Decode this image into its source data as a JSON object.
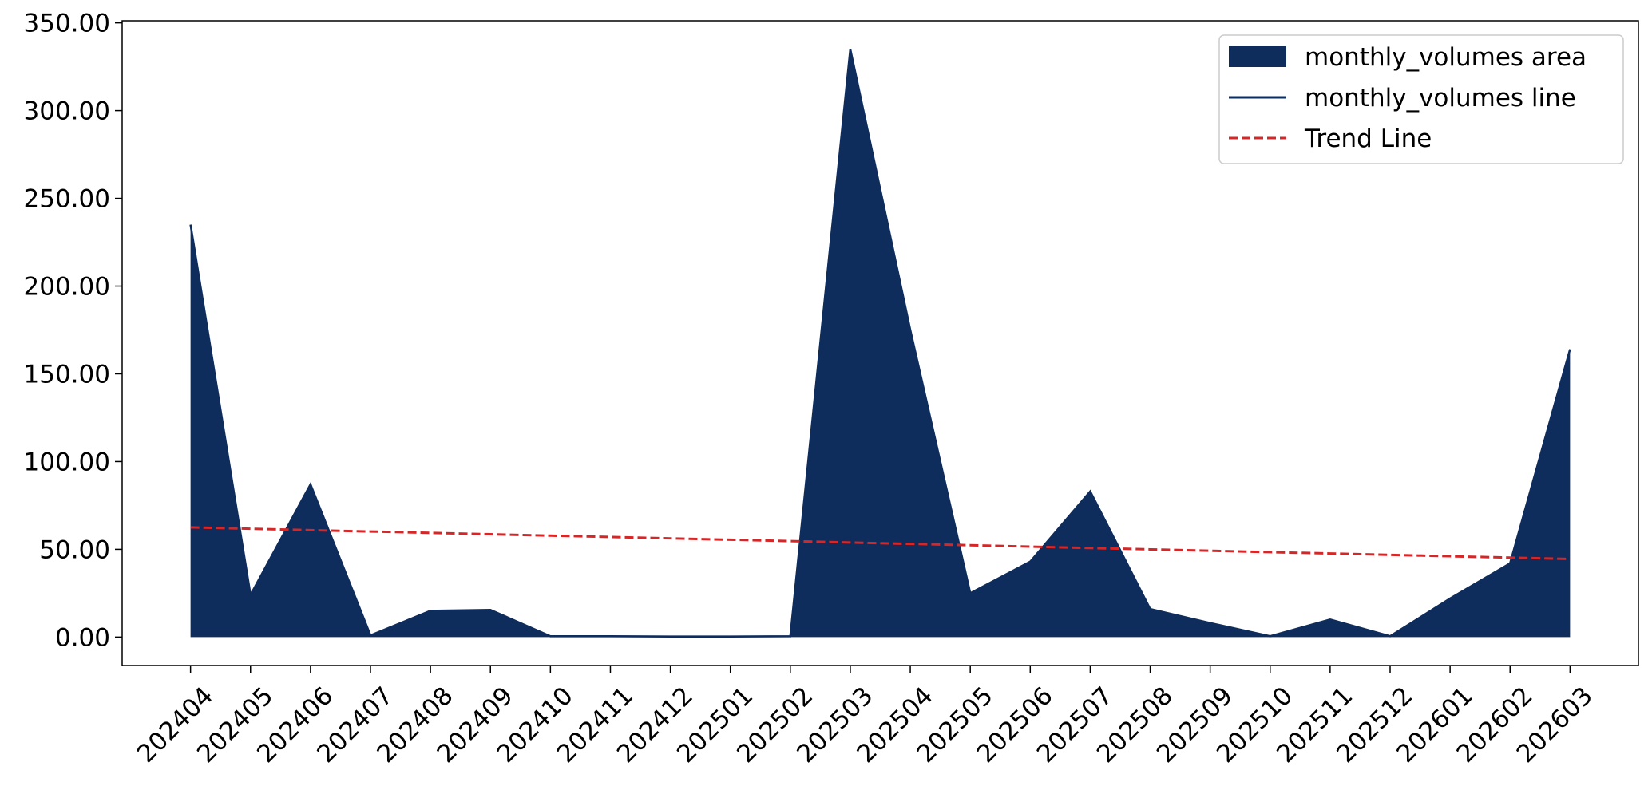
{
  "chart_data": {
    "type": "area",
    "categories": [
      "202404",
      "202405",
      "202406",
      "202407",
      "202408",
      "202409",
      "202410",
      "202411",
      "202412",
      "202501",
      "202502",
      "202503",
      "202504",
      "202505",
      "202506",
      "202507",
      "202508",
      "202509",
      "202510",
      "202511",
      "202512",
      "202601",
      "202602",
      "202603"
    ],
    "series": [
      {
        "name": "monthly_volumes area",
        "color": "#0e2c5c",
        "style": "area",
        "values": [
          235,
          24,
          87,
          1,
          15,
          15.5,
          0.5,
          0.5,
          0.3,
          0.3,
          0.5,
          335,
          175,
          25,
          43,
          83,
          16,
          8,
          0.5,
          10,
          0.5,
          22,
          42,
          164
        ]
      },
      {
        "name": "monthly_volumes line",
        "color": "#0e2c5c",
        "style": "line",
        "values": [
          235,
          24,
          87,
          1,
          15,
          15.5,
          0.5,
          0.5,
          0.3,
          0.3,
          0.5,
          335,
          175,
          25,
          43,
          83,
          16,
          8,
          0.5,
          10,
          0.5,
          22,
          42,
          164
        ]
      },
      {
        "name": "Trend Line",
        "color": "#d62728",
        "style": "dashed",
        "values": [
          62.5,
          61.72,
          60.93,
          60.15,
          59.37,
          58.59,
          57.8,
          57.02,
          56.24,
          55.46,
          54.67,
          53.89,
          53.11,
          52.33,
          51.54,
          50.76,
          49.98,
          49.2,
          48.41,
          47.63,
          46.85,
          46.07,
          45.28,
          44.5
        ]
      }
    ],
    "ylim": [
      -16.2,
      351.2
    ],
    "yticks": [
      {
        "value": 0,
        "label": "0.00"
      },
      {
        "value": 50,
        "label": "50.00"
      },
      {
        "value": 100,
        "label": "100.00"
      },
      {
        "value": 150,
        "label": "150.00"
      },
      {
        "value": 200,
        "label": "200.00"
      },
      {
        "value": 250,
        "label": "250.00"
      },
      {
        "value": 300,
        "label": "300.00"
      },
      {
        "value": 350,
        "label": "350.00"
      }
    ],
    "legend": "upper right",
    "grid": false
  }
}
